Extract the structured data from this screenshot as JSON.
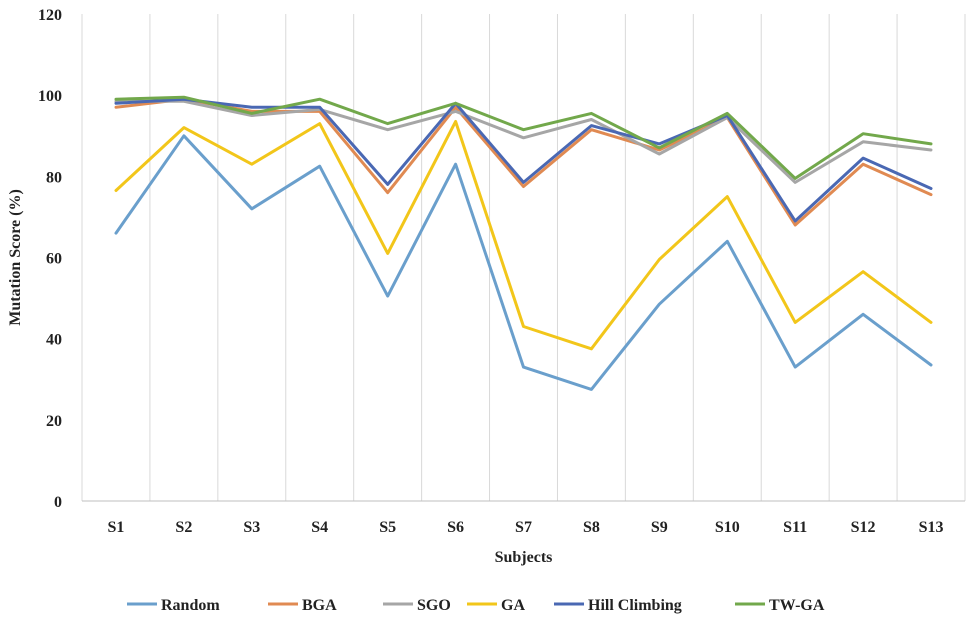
{
  "chart_data": {
    "type": "line",
    "title": "",
    "xlabel": "Subjects",
    "ylabel": "Mutation Score (%)",
    "ylim": [
      0,
      120
    ],
    "yticks": [
      0,
      20,
      40,
      60,
      80,
      100,
      120
    ],
    "grid": "vertical",
    "legend_position": "bottom",
    "categories": [
      "S1",
      "S2",
      "S3",
      "S4",
      "S5",
      "S6",
      "S7",
      "S8",
      "S9",
      "S10",
      "S11",
      "S12",
      "S13"
    ],
    "series": [
      {
        "name": "Random",
        "color": "#6a9fcc",
        "values": [
          66,
          90,
          72,
          82.5,
          50.5,
          83,
          33,
          27.5,
          48.5,
          64,
          33,
          46,
          33.5
        ]
      },
      {
        "name": "BGA",
        "color": "#e08a52",
        "values": [
          97,
          99,
          96,
          96,
          76,
          97,
          77.5,
          91.5,
          86.5,
          94.5,
          68,
          83,
          75.5
        ]
      },
      {
        "name": "SGO",
        "color": "#a6a6a6",
        "values": [
          98.5,
          98.5,
          95,
          96.5,
          91.5,
          96,
          89.5,
          94,
          85.5,
          94.5,
          78.5,
          88.5,
          86.5
        ]
      },
      {
        "name": "GA",
        "color": "#f2c61a",
        "values": [
          76.5,
          92,
          83,
          93,
          61,
          93.5,
          43,
          37.5,
          59.5,
          75,
          44,
          56.5,
          44
        ]
      },
      {
        "name": "Hill Climbing",
        "color": "#4a68b3",
        "values": [
          98,
          99,
          97,
          97,
          78,
          98,
          78.5,
          92.5,
          88,
          95,
          69,
          84.5,
          77
        ]
      },
      {
        "name": "TW-GA",
        "color": "#72a84b",
        "values": [
          99,
          99.5,
          95.5,
          99,
          93,
          98,
          91.5,
          95.5,
          87,
          95.5,
          79.5,
          90.5,
          88
        ]
      }
    ]
  }
}
